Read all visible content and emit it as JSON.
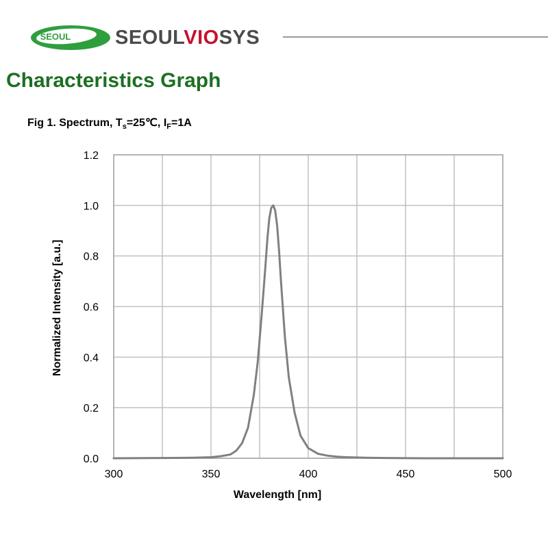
{
  "header": {
    "logo_text": "SEOUL",
    "brand_prefix": "SEOUL",
    "brand_highlight": "VIO",
    "brand_suffix": "SYS"
  },
  "section_title": "Characteristics Graph",
  "figure": {
    "caption_prefix": "Fig 1. Spectrum, T",
    "caption_sub1": "s",
    "caption_mid": "=25℃, I",
    "caption_sub2": "F",
    "caption_suffix": "=1A"
  },
  "colors": {
    "brand_green": "#1d6f22",
    "logo_green": "#2f9e3d",
    "accent_red": "#c8102e",
    "curve": "#808080",
    "grid": "#c0c0c0"
  },
  "chart_data": {
    "type": "line",
    "title": "Fig 1. Spectrum, Ts=25℃, IF=1A",
    "xlabel": "Wavelength [nm]",
    "ylabel": "Normalized Intensity [a.u.]",
    "xlim": [
      300,
      500
    ],
    "ylim": [
      0,
      1.2
    ],
    "xticks": [
      "300",
      "350",
      "400",
      "450",
      "500"
    ],
    "yticks": [
      "0.0",
      "0.2",
      "0.4",
      "0.6",
      "0.8",
      "1.0",
      "1.2"
    ],
    "grid": true,
    "series": [
      {
        "x": [
          300,
          340,
          350,
          355,
          360,
          363,
          366,
          369,
          372,
          374,
          376,
          378,
          379,
          380,
          381,
          382,
          383,
          384,
          385,
          386,
          388,
          390,
          393,
          396,
          400,
          405,
          410,
          415,
          420,
          430,
          440,
          460,
          500
        ],
        "y": [
          0,
          0.002,
          0.004,
          0.008,
          0.015,
          0.03,
          0.06,
          0.12,
          0.25,
          0.38,
          0.56,
          0.76,
          0.87,
          0.95,
          0.99,
          1.0,
          0.98,
          0.92,
          0.82,
          0.7,
          0.48,
          0.32,
          0.18,
          0.09,
          0.04,
          0.018,
          0.01,
          0.006,
          0.004,
          0.002,
          0.001,
          0,
          0
        ]
      }
    ]
  }
}
